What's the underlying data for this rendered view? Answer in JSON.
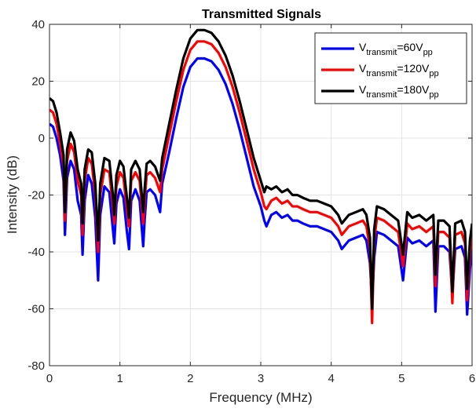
{
  "chart_data": {
    "type": "line",
    "title": "Transmitted Signals",
    "xlabel": "Frequency (MHz)",
    "ylabel": "Intensity (dB)",
    "xlim": [
      0,
      6
    ],
    "ylim": [
      -80,
      40
    ],
    "xticks": [
      0,
      1,
      2,
      3,
      4,
      5,
      6
    ],
    "yticks": [
      -80,
      -60,
      -40,
      -20,
      0,
      20,
      40
    ],
    "xtick_labels": [
      "0",
      "1",
      "2",
      "3",
      "4",
      "5",
      "6"
    ],
    "ytick_labels": [
      "-80",
      "-60",
      "-40",
      "-20",
      "0",
      "20",
      "40"
    ],
    "grid": true,
    "legend_position": "top-right",
    "series": [
      {
        "name_main": "V",
        "name_sub": "transmit",
        "name_mid": "=60V",
        "name_sub2": "pp",
        "color": "#0000ff",
        "x": [
          0,
          0.05,
          0.1,
          0.15,
          0.2,
          0.22,
          0.25,
          0.3,
          0.35,
          0.4,
          0.45,
          0.47,
          0.5,
          0.55,
          0.6,
          0.65,
          0.69,
          0.72,
          0.78,
          0.85,
          0.9,
          0.92,
          0.95,
          1.0,
          1.05,
          1.1,
          1.13,
          1.16,
          1.22,
          1.28,
          1.33,
          1.35,
          1.38,
          1.43,
          1.5,
          1.57,
          1.6,
          1.7,
          1.8,
          1.9,
          2.0,
          2.1,
          2.2,
          2.3,
          2.4,
          2.5,
          2.6,
          2.7,
          2.8,
          2.9,
          3.0,
          3.05,
          3.08,
          3.15,
          3.22,
          3.3,
          3.38,
          3.45,
          3.52,
          3.6,
          3.7,
          3.8,
          3.9,
          4.0,
          4.1,
          4.15,
          4.25,
          4.35,
          4.45,
          4.5,
          4.55,
          4.58,
          4.61,
          4.65,
          4.75,
          4.85,
          4.95,
          5.02,
          5.08,
          5.15,
          5.25,
          5.35,
          5.45,
          5.48,
          5.52,
          5.6,
          5.68,
          5.72,
          5.76,
          5.85,
          5.9,
          5.93,
          5.97,
          6.0
        ],
        "y": [
          5,
          4,
          0,
          -6,
          -15,
          -34,
          -14,
          -8,
          -11,
          -22,
          -27,
          -41,
          -22,
          -13,
          -16,
          -28,
          -50,
          -27,
          -17,
          -19,
          -32,
          -37,
          -23,
          -18,
          -21,
          -33,
          -39,
          -22,
          -18,
          -22,
          -38,
          -29,
          -19,
          -18,
          -20,
          -26,
          -16,
          -5,
          7,
          18,
          25,
          28,
          28,
          27,
          24,
          19,
          12,
          3,
          -7,
          -17,
          -24,
          -29,
          -31,
          -27,
          -26,
          -28,
          -27,
          -29,
          -29,
          -30,
          -31,
          -31,
          -32,
          -33,
          -36,
          -39,
          -36,
          -35,
          -34,
          -36,
          -44,
          -58,
          -42,
          -33,
          -34,
          -36,
          -38,
          -50,
          -35,
          -37,
          -36,
          -38,
          -36,
          -61,
          -38,
          -38,
          -40,
          -55,
          -39,
          -38,
          -42,
          -62,
          -46,
          -39
        ]
      },
      {
        "name_main": "V",
        "name_sub": "transmit",
        "name_mid": "=120V",
        "name_sub2": "pp",
        "color": "#ff0000",
        "x": [
          0,
          0.05,
          0.1,
          0.15,
          0.2,
          0.22,
          0.25,
          0.3,
          0.35,
          0.4,
          0.45,
          0.47,
          0.5,
          0.55,
          0.6,
          0.65,
          0.69,
          0.72,
          0.78,
          0.85,
          0.9,
          0.92,
          0.95,
          1.0,
          1.05,
          1.1,
          1.13,
          1.16,
          1.22,
          1.28,
          1.33,
          1.35,
          1.38,
          1.43,
          1.5,
          1.57,
          1.6,
          1.7,
          1.8,
          1.9,
          2.0,
          2.1,
          2.2,
          2.3,
          2.4,
          2.5,
          2.6,
          2.7,
          2.8,
          2.9,
          3.0,
          3.05,
          3.08,
          3.15,
          3.22,
          3.3,
          3.38,
          3.45,
          3.52,
          3.6,
          3.7,
          3.8,
          3.9,
          4.0,
          4.1,
          4.15,
          4.25,
          4.35,
          4.45,
          4.5,
          4.55,
          4.58,
          4.61,
          4.65,
          4.75,
          4.85,
          4.95,
          5.02,
          5.08,
          5.15,
          5.25,
          5.35,
          5.45,
          5.48,
          5.52,
          5.6,
          5.68,
          5.72,
          5.76,
          5.85,
          5.9,
          5.93,
          5.97,
          6.0
        ],
        "y": [
          10,
          9,
          5,
          -2,
          -10,
          -29,
          -8,
          -2,
          -5,
          -15,
          -20,
          -34,
          -15,
          -7,
          -9,
          -20,
          -40,
          -20,
          -11,
          -12,
          -24,
          -30,
          -17,
          -12,
          -14,
          -25,
          -31,
          -15,
          -12,
          -15,
          -30,
          -22,
          -13,
          -12,
          -14,
          -19,
          -11,
          1,
          13,
          24,
          31,
          34,
          34,
          33,
          30,
          25,
          18,
          9,
          -1,
          -11,
          -19,
          -24,
          -25,
          -22,
          -21,
          -23,
          -22,
          -24,
          -24,
          -25,
          -26,
          -26,
          -27,
          -28,
          -31,
          -34,
          -31,
          -30,
          -29,
          -31,
          -39,
          -65,
          -36,
          -28,
          -29,
          -31,
          -33,
          -45,
          -30,
          -32,
          -31,
          -33,
          -31,
          -52,
          -33,
          -33,
          -35,
          -58,
          -34,
          -33,
          -37,
          -57,
          -40,
          -35
        ]
      },
      {
        "name_main": "V",
        "name_sub": "transmit",
        "name_mid": "=180V",
        "name_sub2": "pp",
        "color": "#000000",
        "x": [
          0,
          0.05,
          0.1,
          0.15,
          0.2,
          0.22,
          0.25,
          0.3,
          0.35,
          0.4,
          0.45,
          0.47,
          0.5,
          0.55,
          0.6,
          0.65,
          0.69,
          0.72,
          0.78,
          0.85,
          0.9,
          0.92,
          0.95,
          1.0,
          1.05,
          1.1,
          1.13,
          1.16,
          1.22,
          1.28,
          1.33,
          1.35,
          1.38,
          1.43,
          1.5,
          1.57,
          1.6,
          1.7,
          1.8,
          1.9,
          2.0,
          2.1,
          2.2,
          2.3,
          2.4,
          2.5,
          2.6,
          2.7,
          2.8,
          2.9,
          3.0,
          3.05,
          3.08,
          3.15,
          3.22,
          3.3,
          3.38,
          3.45,
          3.52,
          3.6,
          3.7,
          3.8,
          3.9,
          4.0,
          4.1,
          4.15,
          4.25,
          4.35,
          4.45,
          4.5,
          4.55,
          4.58,
          4.61,
          4.65,
          4.75,
          4.85,
          4.95,
          5.02,
          5.08,
          5.15,
          5.25,
          5.35,
          5.45,
          5.48,
          5.52,
          5.6,
          5.68,
          5.72,
          5.76,
          5.85,
          5.9,
          5.93,
          5.97,
          6.0
        ],
        "y": [
          14,
          13,
          9,
          2,
          -6,
          -26,
          -4,
          2,
          -1,
          -11,
          -16,
          -30,
          -11,
          -4,
          -5,
          -16,
          -36,
          -16,
          -7,
          -8,
          -20,
          -27,
          -13,
          -8,
          -10,
          -21,
          -28,
          -11,
          -8,
          -11,
          -26,
          -18,
          -9,
          -8,
          -10,
          -15,
          -7,
          5,
          17,
          28,
          35,
          38,
          38,
          37,
          34,
          29,
          22,
          13,
          3,
          -7,
          -15,
          -19,
          -17,
          -18,
          -17,
          -19,
          -18,
          -20,
          -20,
          -21,
          -22,
          -22,
          -23,
          -24,
          -27,
          -30,
          -27,
          -26,
          -25,
          -27,
          -35,
          -60,
          -32,
          -24,
          -25,
          -27,
          -29,
          -41,
          -26,
          -28,
          -27,
          -29,
          -27,
          -48,
          -29,
          -29,
          -31,
          -54,
          -30,
          -29,
          -33,
          -53,
          -36,
          -30
        ]
      }
    ]
  }
}
